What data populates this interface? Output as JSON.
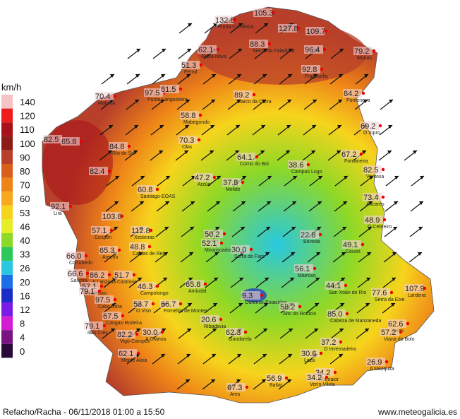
{
  "legend": {
    "unit": "km/h",
    "ticks": [
      {
        "value": 140,
        "color": "#f7c4c6"
      },
      {
        "value": 120,
        "color": "#ee1c1c"
      },
      {
        "value": 110,
        "color": "#a8101a"
      },
      {
        "value": 100,
        "color": "#8e1a1a"
      },
      {
        "value": 90,
        "color": "#b8402a"
      },
      {
        "value": 80,
        "color": "#d9601c"
      },
      {
        "value": 70,
        "color": "#ee8418"
      },
      {
        "value": 60,
        "color": "#f7a81c"
      },
      {
        "value": 53,
        "color": "#f7d41c"
      },
      {
        "value": 46,
        "color": "#e6ee28"
      },
      {
        "value": 40,
        "color": "#8ed826"
      },
      {
        "value": 33,
        "color": "#2ec85a"
      },
      {
        "value": 26,
        "color": "#28c8e0"
      },
      {
        "value": 20,
        "color": "#1c6ee6"
      },
      {
        "value": 16,
        "color": "#1c2cc8"
      },
      {
        "value": 12,
        "color": "#7a1ce6"
      },
      {
        "value": 8,
        "color": "#d41cd4"
      },
      {
        "value": 4,
        "color": "#7a1480"
      },
      {
        "value": 0,
        "color": "#2a0a3a"
      }
    ]
  },
  "stations": [
    {
      "value": "132.8",
      "name": "Punta Candieira"
    },
    {
      "value": "105.3"
    },
    {
      "value": "127.8"
    },
    {
      "value": "109.7"
    },
    {
      "value": "62.1",
      "name": "Aldea Nova"
    },
    {
      "value": "88.3",
      "name": "Sierra da Faladoira"
    },
    {
      "value": "96.4"
    },
    {
      "value": "79.2",
      "name": "Murias"
    },
    {
      "value": "51.3",
      "name": "Ferrol"
    },
    {
      "value": "92.8",
      "name": "Fragavella"
    },
    {
      "value": "70.4",
      "name": "Malpica"
    },
    {
      "value": "97.5",
      "name": "Punta Langosteira"
    },
    {
      "value": "81.5"
    },
    {
      "value": "89.2",
      "name": "Marco da Curra"
    },
    {
      "value": "84.2",
      "name": "Pontenova"
    },
    {
      "value": "58.8",
      "name": "Mabegondo"
    },
    {
      "value": "69.2",
      "name": "O Xipro"
    },
    {
      "value": "82.5"
    },
    {
      "value": "65.8"
    },
    {
      "value": "84.8",
      "name": "Río do Sol"
    },
    {
      "value": "70.3",
      "name": "Olas"
    },
    {
      "value": "64.1",
      "name": "Corno do Boi"
    },
    {
      "value": "67.2",
      "name": "Fontaneira"
    },
    {
      "value": "38.6",
      "name": "Campus Lugo"
    },
    {
      "value": "82.4"
    },
    {
      "value": "82.5",
      "name": "Ventosa"
    },
    {
      "value": "47.2",
      "name": "Arzúa"
    },
    {
      "value": "37.8",
      "name": "Melide"
    },
    {
      "value": "60.8",
      "name": "Santiago-EOAS"
    },
    {
      "value": "73.4",
      "name": "Ancares"
    },
    {
      "value": "92.1",
      "name": "Lira"
    },
    {
      "value": "103.8"
    },
    {
      "value": "48.9",
      "name": "O Cebreiro"
    },
    {
      "value": "57.1",
      "name": "Cespón"
    },
    {
      "value": "112.8",
      "name": "Xesteiras"
    },
    {
      "value": "50.2",
      "name": "Lalín"
    },
    {
      "value": "22.8",
      "name": "Bóveda"
    },
    {
      "value": "52.1",
      "name": "Mouriscados"
    },
    {
      "value": "49.1",
      "name": "Courel"
    },
    {
      "value": "48.8",
      "name": "Caldas de Reis"
    },
    {
      "value": "30.0",
      "name": "Serra do Faro"
    },
    {
      "value": "65.3",
      "name": "Areeiro"
    },
    {
      "value": "66.0",
      "name": "Corrubedo"
    },
    {
      "value": "56.1",
      "name": "Marroxo"
    },
    {
      "value": "66.6",
      "name": "Salvora"
    },
    {
      "value": "86.2",
      "name": "A Lanzada"
    },
    {
      "value": "51.7",
      "name": "Castrove"
    },
    {
      "value": "57.1",
      "name": "Sanxenxo"
    },
    {
      "value": "46.3",
      "name": "Campolongo"
    },
    {
      "value": "44.1",
      "name": "San Xoán de Río"
    },
    {
      "value": "65.8",
      "name": "Amiudal"
    },
    {
      "value": "79.1"
    },
    {
      "value": "107.9",
      "name": "Lardeira"
    },
    {
      "value": "77.6",
      "name": "Serra da Eixe"
    },
    {
      "value": "9.3",
      "name": "Ourense-Estacións"
    },
    {
      "value": "97.5",
      "name": "Cabo Udra"
    },
    {
      "value": "53.7",
      "name": "O Viso"
    },
    {
      "value": "66.7",
      "name": "Fornelos de Montes"
    },
    {
      "value": "58.2",
      "name": "Alto do Rodicio"
    },
    {
      "value": "67.5",
      "name": "Cangas-Rodeira"
    },
    {
      "value": "85.0",
      "name": "Cabeza de Manzaneda"
    },
    {
      "value": "20.6",
      "name": "Ribadavia"
    },
    {
      "value": "79.1",
      "name": "Illas Cíes"
    },
    {
      "value": "62.6",
      "name": "Xares"
    },
    {
      "value": "82.2",
      "name": "Vigo-Campus"
    },
    {
      "value": "30.0",
      "name": "A Granxa"
    },
    {
      "value": "62.3",
      "name": "Gandarela"
    },
    {
      "value": "57.2",
      "name": "Viana do Bolo"
    },
    {
      "value": "37.2",
      "name": "O Invernadeiro"
    },
    {
      "value": "62.1",
      "name": "Monte Aloia"
    },
    {
      "value": "30.6",
      "name": "Laza"
    },
    {
      "value": "26.9",
      "name": "A Mezquita"
    },
    {
      "value": "34.2",
      "name": "Vilamaior"
    },
    {
      "value": "34.2",
      "name": "Verín-Vilela"
    },
    {
      "value": "67.3",
      "name": "Ares"
    },
    {
      "value": "56.9",
      "name": "Baltar"
    }
  ],
  "footer": {
    "caption": "Refacho/Racha - 06/11/2018 01:00 a 15:50",
    "source": "www.meteogalicia.es"
  }
}
